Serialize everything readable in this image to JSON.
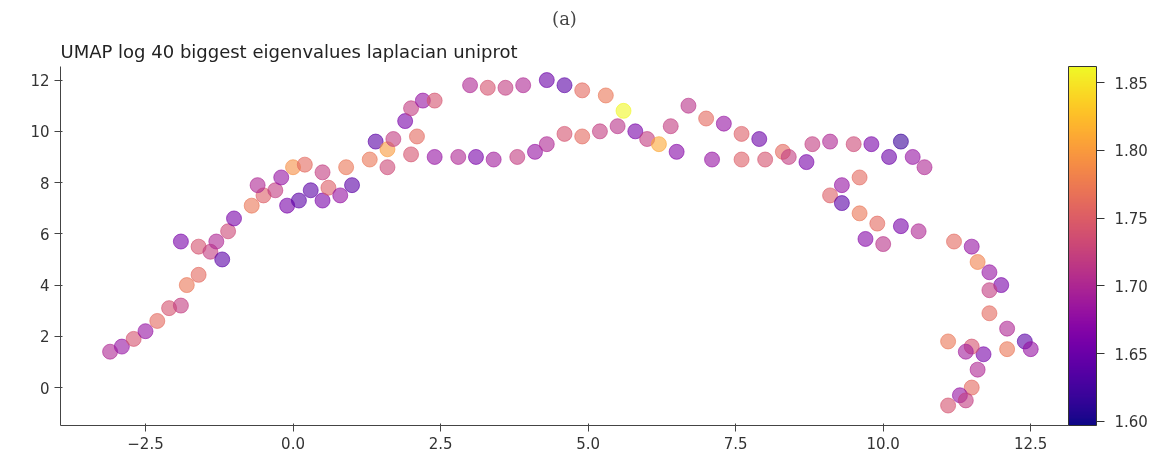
{
  "chart_data": {
    "type": "scatter",
    "title": "UMAP log 40 biggest eigenvalues laplacian uniprot",
    "annotations": [
      "(a)"
    ],
    "marker": "circle",
    "x": [
      -3.1,
      -2.9,
      -2.7,
      -2.5,
      -2.3,
      -2.1,
      -1.9,
      -1.8,
      -1.6,
      -1.9,
      -1.6,
      -1.4,
      -1.2,
      -1.3,
      -1.1,
      -1.0,
      -0.7,
      -0.5,
      -0.6,
      -0.3,
      -0.2,
      0.0,
      0.2,
      -0.1,
      0.1,
      0.3,
      0.5,
      0.6,
      0.8,
      1.0,
      0.5,
      0.9,
      1.3,
      1.4,
      1.6,
      1.7,
      1.6,
      2.0,
      2.1,
      1.9,
      2.0,
      2.2,
      2.4,
      2.4,
      2.8,
      3.1,
      3.4,
      3.8,
      4.1,
      3.0,
      3.3,
      3.6,
      3.9,
      4.3,
      4.6,
      4.9,
      5.3,
      5.6,
      4.6,
      4.3,
      4.9,
      5.2,
      5.5,
      5.8,
      6.0,
      6.2,
      6.5,
      6.4,
      6.7,
      7.0,
      7.3,
      7.6,
      7.9,
      7.1,
      7.6,
      8.0,
      8.3,
      8.4,
      8.7,
      8.8,
      9.1,
      9.5,
      9.8,
      10.3,
      10.1,
      10.5,
      10.7,
      9.6,
      9.3,
      9.1,
      9.3,
      9.6,
      9.9,
      10.3,
      10.6,
      9.7,
      10.0,
      11.2,
      11.5,
      11.6,
      11.8,
      12.0,
      11.8,
      11.8,
      12.1,
      12.4,
      12.5,
      12.1,
      11.7,
      11.1,
      11.5,
      11.4,
      11.6,
      11.5,
      11.3,
      11.1,
      11.4
    ],
    "values": [
      1.4,
      1.6,
      1.9,
      2.2,
      2.6,
      3.1,
      3.2,
      4.0,
      4.4,
      5.7,
      5.5,
      5.3,
      5.0,
      5.7,
      6.1,
      6.6,
      7.1,
      7.5,
      7.9,
      7.7,
      8.2,
      8.6,
      8.7,
      7.1,
      7.3,
      7.7,
      7.3,
      7.8,
      7.5,
      7.9,
      8.4,
      8.6,
      8.9,
      9.6,
      9.3,
      9.7,
      8.6,
      9.1,
      9.8,
      10.4,
      10.9,
      11.2,
      11.2,
      9.0,
      9.0,
      9.0,
      8.9,
      9.0,
      9.2,
      11.8,
      11.7,
      11.7,
      11.8,
      12.0,
      11.8,
      11.6,
      11.4,
      10.8,
      9.9,
      9.5,
      9.8,
      10.0,
      10.2,
      10.0,
      9.7,
      9.5,
      9.2,
      10.2,
      11.0,
      10.5,
      10.3,
      9.9,
      9.7,
      8.9,
      8.9,
      8.9,
      9.2,
      9.0,
      8.8,
      9.5,
      9.6,
      9.5,
      9.5,
      9.6,
      9.0,
      9.0,
      8.6,
      8.2,
      7.9,
      7.5,
      7.2,
      6.8,
      6.4,
      6.3,
      6.1,
      5.8,
      5.6,
      5.7,
      5.5,
      4.9,
      4.5,
      4.0,
      3.8,
      2.9,
      2.3,
      1.8,
      1.5,
      1.5,
      1.3,
      1.8,
      1.6,
      1.4,
      0.7,
      0.0,
      -0.3,
      -0.7,
      -0.5
    ],
    "cvalues": [
      1.7,
      1.68,
      1.74,
      1.68,
      1.76,
      1.74,
      1.72,
      1.77,
      1.76,
      1.66,
      1.74,
      1.72,
      1.64,
      1.7,
      1.73,
      1.66,
      1.77,
      1.75,
      1.7,
      1.72,
      1.68,
      1.79,
      1.76,
      1.66,
      1.64,
      1.64,
      1.66,
      1.75,
      1.68,
      1.64,
      1.72,
      1.77,
      1.77,
      1.64,
      1.8,
      1.72,
      1.73,
      1.74,
      1.76,
      1.66,
      1.72,
      1.68,
      1.74,
      1.68,
      1.7,
      1.66,
      1.69,
      1.72,
      1.68,
      1.7,
      1.74,
      1.72,
      1.7,
      1.65,
      1.64,
      1.76,
      1.77,
      1.86,
      1.74,
      1.7,
      1.76,
      1.72,
      1.71,
      1.66,
      1.72,
      1.81,
      1.67,
      1.72,
      1.71,
      1.76,
      1.68,
      1.75,
      1.65,
      1.68,
      1.75,
      1.74,
      1.76,
      1.72,
      1.66,
      1.72,
      1.7,
      1.73,
      1.66,
      1.62,
      1.65,
      1.68,
      1.7,
      1.76,
      1.68,
      1.75,
      1.64,
      1.77,
      1.76,
      1.66,
      1.7,
      1.67,
      1.71,
      1.76,
      1.68,
      1.78,
      1.68,
      1.66,
      1.72,
      1.76,
      1.7,
      1.64,
      1.68,
      1.77,
      1.66,
      1.77,
      1.74,
      1.69,
      1.7,
      1.76,
      1.68,
      1.74,
      1.72
    ],
    "xlim": [
      -3.94,
      13.14
    ],
    "ylim": [
      -1.48,
      12.53
    ],
    "xticks": [
      {
        "value": -2.5,
        "label": "−2.5"
      },
      "0.0",
      2.5,
      "5.0",
      7.5,
      "10.0",
      12.5
    ],
    "yticks": [
      0,
      2,
      4,
      6,
      8,
      10,
      12
    ],
    "clim": [
      1.597,
      1.862
    ],
    "cticks": [
      {
        "value": 1.6,
        "label": "1.60"
      },
      1.65,
      {
        "value": 1.7,
        "label": "1.70"
      },
      1.75,
      {
        "value": 1.8,
        "label": "1.80"
      },
      1.85
    ]
  }
}
